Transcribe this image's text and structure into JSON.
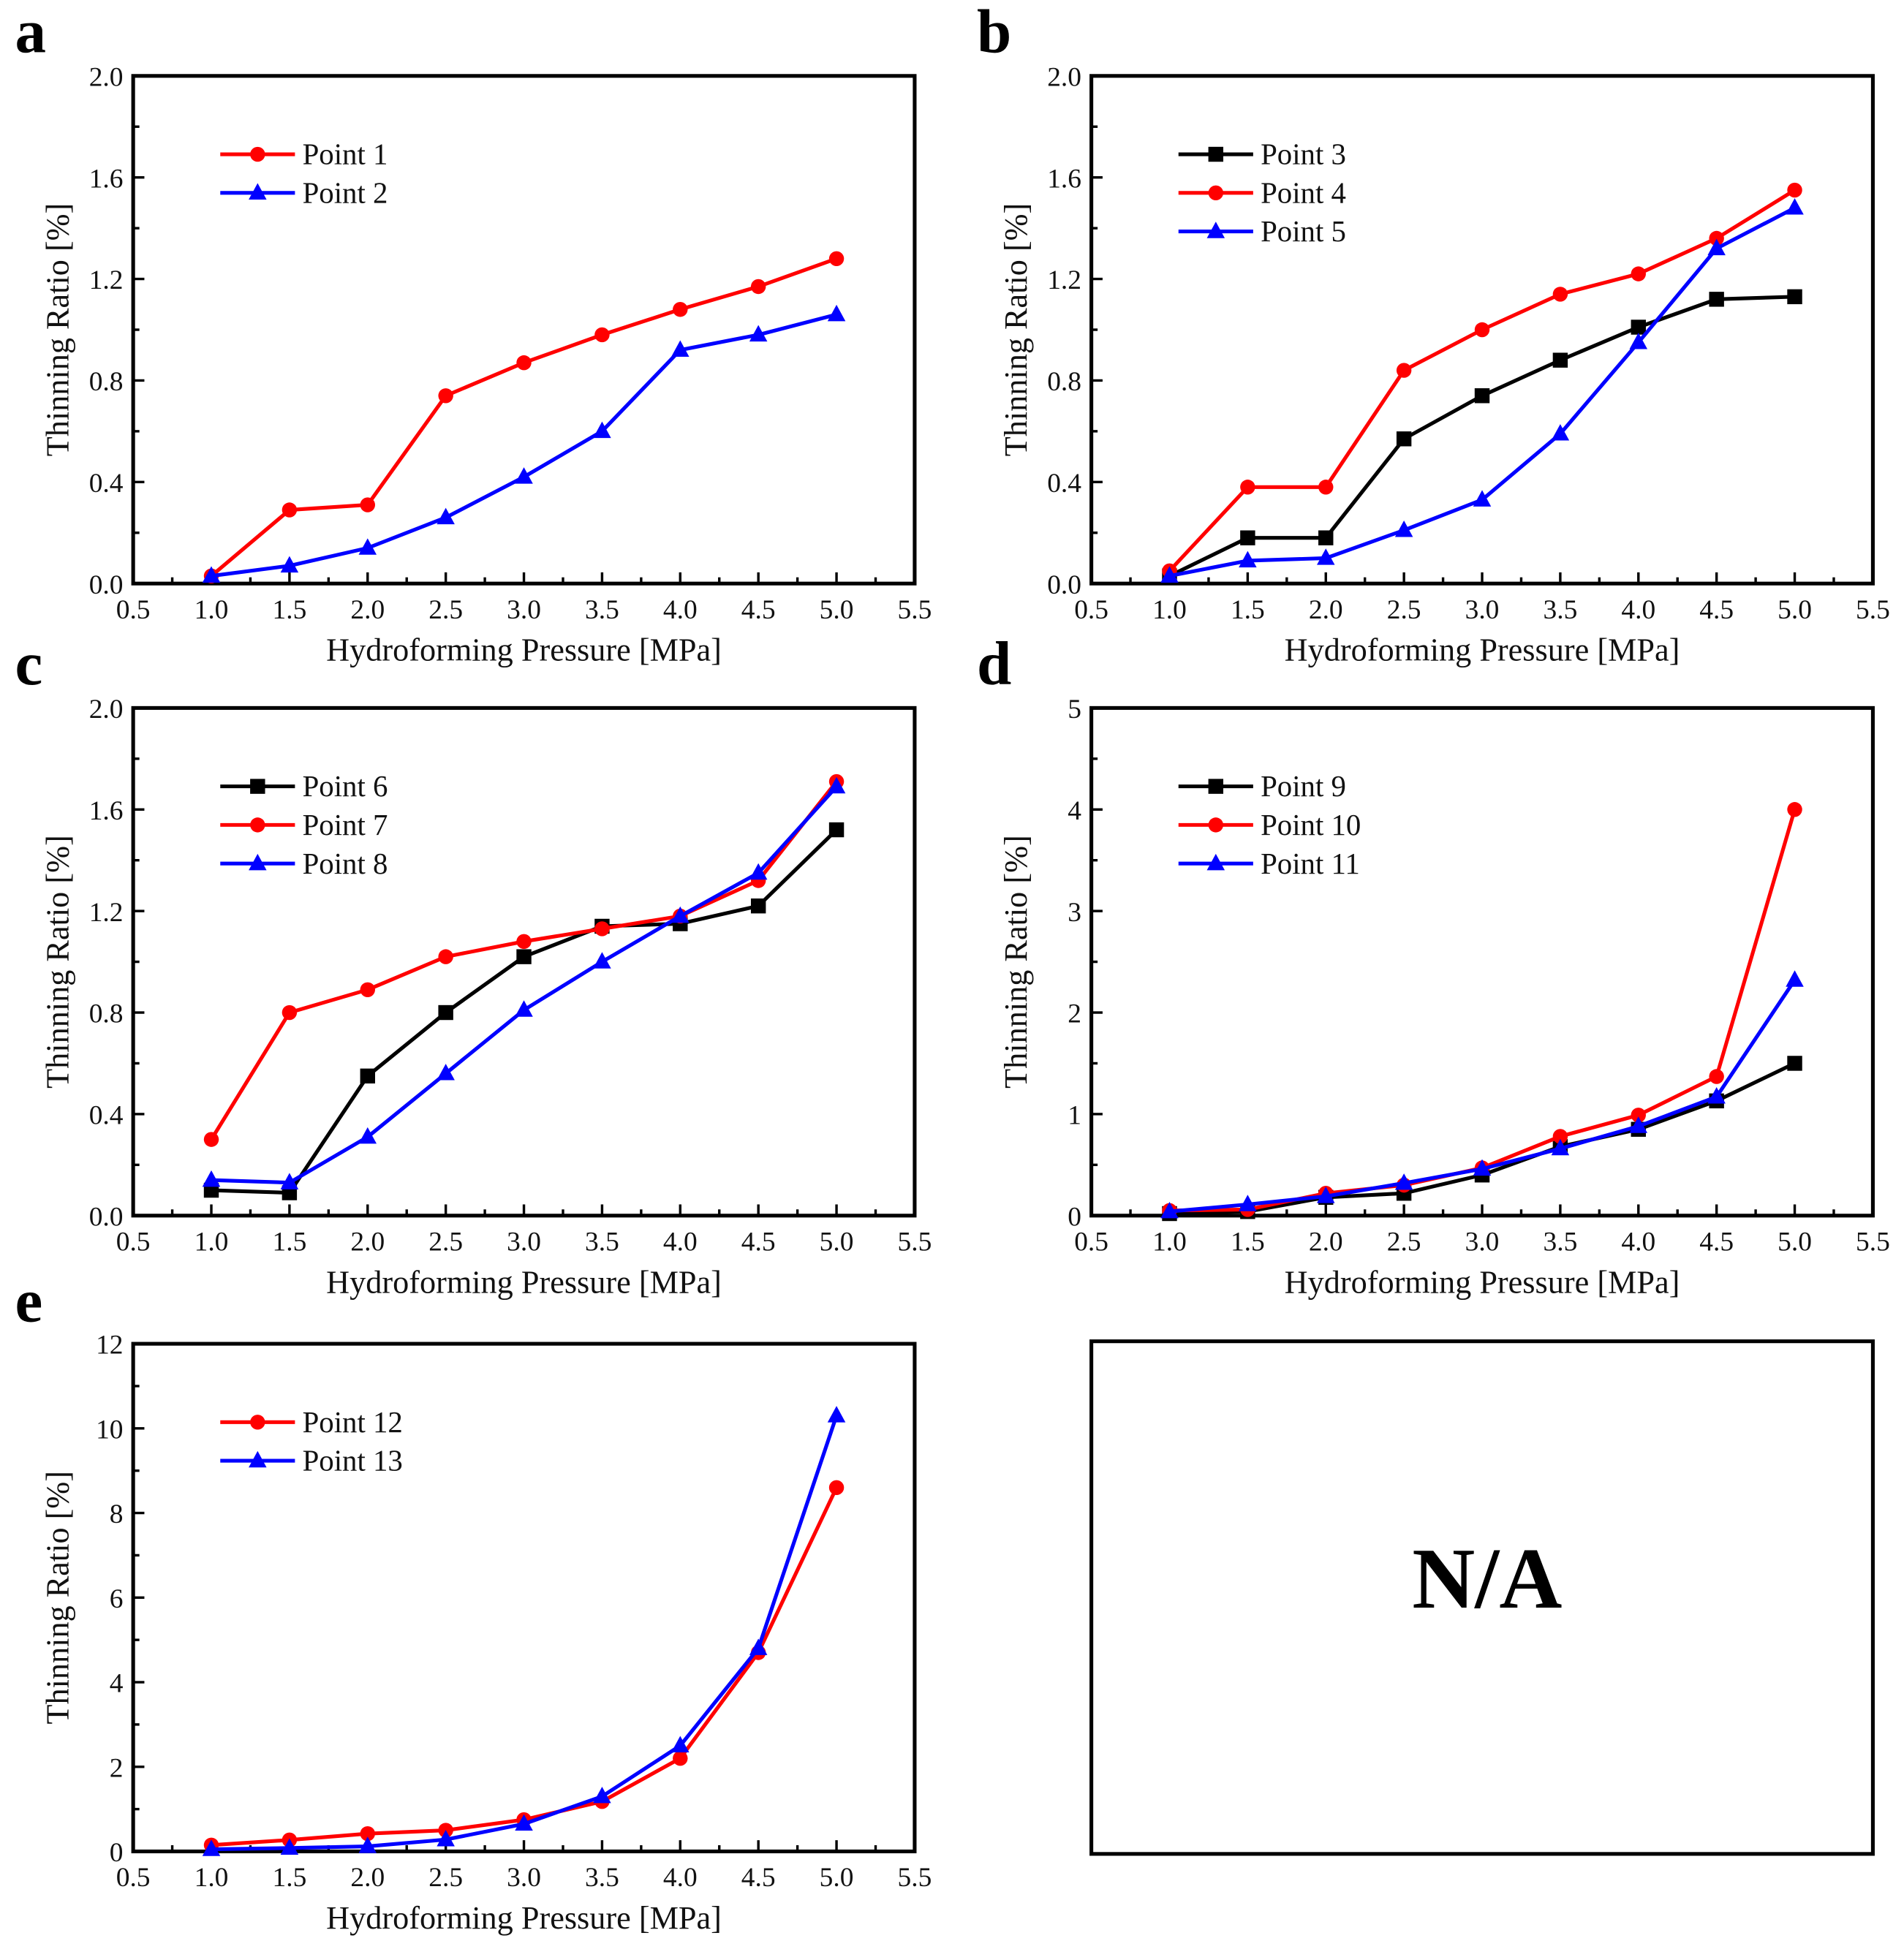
{
  "colors": {
    "black": "#000000",
    "red": "#ff0000",
    "blue": "#0000ff"
  },
  "na_panel": {
    "text": "N/A"
  },
  "chart_data": [
    {
      "type": "line",
      "panel": "a",
      "xlabel": "Hydroforming Pressure [MPa]",
      "ylabel": "Thinning Ratio [%]",
      "xlim": [
        0.5,
        5.5
      ],
      "ylim": [
        0,
        2.0
      ],
      "xticks": [
        "0.5",
        "1.0",
        "1.5",
        "2.0",
        "2.5",
        "3.0",
        "3.5",
        "4.0",
        "4.5",
        "5.0",
        "5.5"
      ],
      "yticks": [
        "0.0",
        "0.4",
        "0.8",
        "1.2",
        "1.6",
        "2.0"
      ],
      "ystep": 0.4,
      "legend": "top-left",
      "x": [
        1.0,
        1.5,
        2.0,
        2.5,
        3.0,
        3.5,
        4.0,
        4.5,
        5.0
      ],
      "series": [
        {
          "name": "Point 1",
          "color": "#ff0000",
          "marker": "circle",
          "values": [
            0.03,
            0.29,
            0.31,
            0.74,
            0.87,
            0.98,
            1.08,
            1.17,
            1.28
          ]
        },
        {
          "name": "Point 2",
          "color": "#0000ff",
          "marker": "triangle",
          "values": [
            0.03,
            0.07,
            0.14,
            0.26,
            0.42,
            0.6,
            0.92,
            0.98,
            1.06
          ]
        }
      ]
    },
    {
      "type": "line",
      "panel": "b",
      "xlabel": "Hydroforming Pressure [MPa]",
      "ylabel": "Thinning Ratio [%]",
      "xlim": [
        0.5,
        5.5
      ],
      "ylim": [
        0,
        2.0
      ],
      "xticks": [
        "0.5",
        "1.0",
        "1.5",
        "2.0",
        "2.5",
        "3.0",
        "3.5",
        "4.0",
        "4.5",
        "5.0",
        "5.5"
      ],
      "yticks": [
        "0.0",
        "0.4",
        "0.8",
        "1.2",
        "1.6",
        "2.0"
      ],
      "ystep": 0.4,
      "legend": "top-left",
      "x": [
        1.0,
        1.5,
        2.0,
        2.5,
        3.0,
        3.5,
        4.0,
        4.5,
        5.0
      ],
      "series": [
        {
          "name": "Point 3",
          "color": "#000000",
          "marker": "square",
          "values": [
            0.03,
            0.18,
            0.18,
            0.57,
            0.74,
            0.88,
            1.01,
            1.12,
            1.13
          ]
        },
        {
          "name": "Point 4",
          "color": "#ff0000",
          "marker": "circle",
          "values": [
            0.05,
            0.38,
            0.38,
            0.84,
            1.0,
            1.14,
            1.22,
            1.36,
            1.55
          ]
        },
        {
          "name": "Point 5",
          "color": "#0000ff",
          "marker": "triangle",
          "values": [
            0.03,
            0.09,
            0.1,
            0.21,
            0.33,
            0.59,
            0.95,
            1.32,
            1.48
          ]
        }
      ]
    },
    {
      "type": "line",
      "panel": "c",
      "xlabel": "Hydroforming Pressure [MPa]",
      "ylabel": "Thinning Ratio [%]",
      "xlim": [
        0.5,
        5.5
      ],
      "ylim": [
        0,
        2.0
      ],
      "xticks": [
        "0.5",
        "1.0",
        "1.5",
        "2.0",
        "2.5",
        "3.0",
        "3.5",
        "4.0",
        "4.5",
        "5.0",
        "5.5"
      ],
      "yticks": [
        "0.0",
        "0.4",
        "0.8",
        "1.2",
        "1.6",
        "2.0"
      ],
      "ystep": 0.4,
      "legend": "top-left",
      "x": [
        1.0,
        1.5,
        2.0,
        2.5,
        3.0,
        3.5,
        4.0,
        4.5,
        5.0
      ],
      "series": [
        {
          "name": "Point 6",
          "color": "#000000",
          "marker": "square",
          "values": [
            0.1,
            0.09,
            0.55,
            0.8,
            1.02,
            1.14,
            1.15,
            1.22,
            1.52
          ]
        },
        {
          "name": "Point 7",
          "color": "#ff0000",
          "marker": "circle",
          "values": [
            0.3,
            0.8,
            0.89,
            1.02,
            1.08,
            1.13,
            1.18,
            1.32,
            1.71
          ]
        },
        {
          "name": "Point 8",
          "color": "#0000ff",
          "marker": "triangle",
          "values": [
            0.14,
            0.13,
            0.31,
            0.56,
            0.81,
            1.0,
            1.18,
            1.35,
            1.69
          ]
        }
      ]
    },
    {
      "type": "line",
      "panel": "d",
      "xlabel": "Hydroforming Pressure [MPa]",
      "ylabel": "Thinning Ratio [%]",
      "xlim": [
        0.5,
        5.5
      ],
      "ylim": [
        0,
        5
      ],
      "xticks": [
        "0.5",
        "1.0",
        "1.5",
        "2.0",
        "2.5",
        "3.0",
        "3.5",
        "4.0",
        "4.5",
        "5.0",
        "5.5"
      ],
      "yticks": [
        "0",
        "1",
        "2",
        "3",
        "4",
        "5"
      ],
      "ystep": 1,
      "legend": "top-left",
      "x": [
        1.0,
        1.5,
        2.0,
        2.5,
        3.0,
        3.5,
        4.0,
        4.5,
        5.0
      ],
      "series": [
        {
          "name": "Point 9",
          "color": "#000000",
          "marker": "square",
          "values": [
            0.02,
            0.04,
            0.18,
            0.22,
            0.4,
            0.68,
            0.85,
            1.13,
            1.5
          ]
        },
        {
          "name": "Point 10",
          "color": "#ff0000",
          "marker": "circle",
          "values": [
            0.05,
            0.06,
            0.22,
            0.3,
            0.47,
            0.78,
            0.99,
            1.37,
            4.0
          ]
        },
        {
          "name": "Point 11",
          "color": "#0000ff",
          "marker": "triangle",
          "values": [
            0.04,
            0.11,
            0.19,
            0.32,
            0.46,
            0.66,
            0.88,
            1.17,
            2.32
          ]
        }
      ]
    },
    {
      "type": "line",
      "panel": "e",
      "xlabel": "Hydroforming Pressure [MPa]",
      "ylabel": "Thinning Ratio [%]",
      "xlim": [
        0.5,
        5.5
      ],
      "ylim": [
        0,
        12
      ],
      "xticks": [
        "0.5",
        "1.0",
        "1.5",
        "2.0",
        "2.5",
        "3.0",
        "3.5",
        "4.0",
        "4.5",
        "5.0",
        "5.5"
      ],
      "yticks": [
        "0",
        "2",
        "4",
        "6",
        "8",
        "10",
        "12"
      ],
      "ystep": 2,
      "legend": "top-left",
      "x": [
        1.0,
        1.5,
        2.0,
        2.5,
        3.0,
        3.5,
        4.0,
        4.5,
        5.0
      ],
      "series": [
        {
          "name": "Point 12",
          "color": "#ff0000",
          "marker": "circle",
          "values": [
            0.15,
            0.27,
            0.42,
            0.5,
            0.75,
            1.18,
            2.2,
            4.7,
            8.6
          ]
        },
        {
          "name": "Point 13",
          "color": "#0000ff",
          "marker": "triangle",
          "values": [
            0.05,
            0.08,
            0.12,
            0.28,
            0.65,
            1.3,
            2.5,
            4.8,
            10.3
          ]
        }
      ]
    }
  ]
}
